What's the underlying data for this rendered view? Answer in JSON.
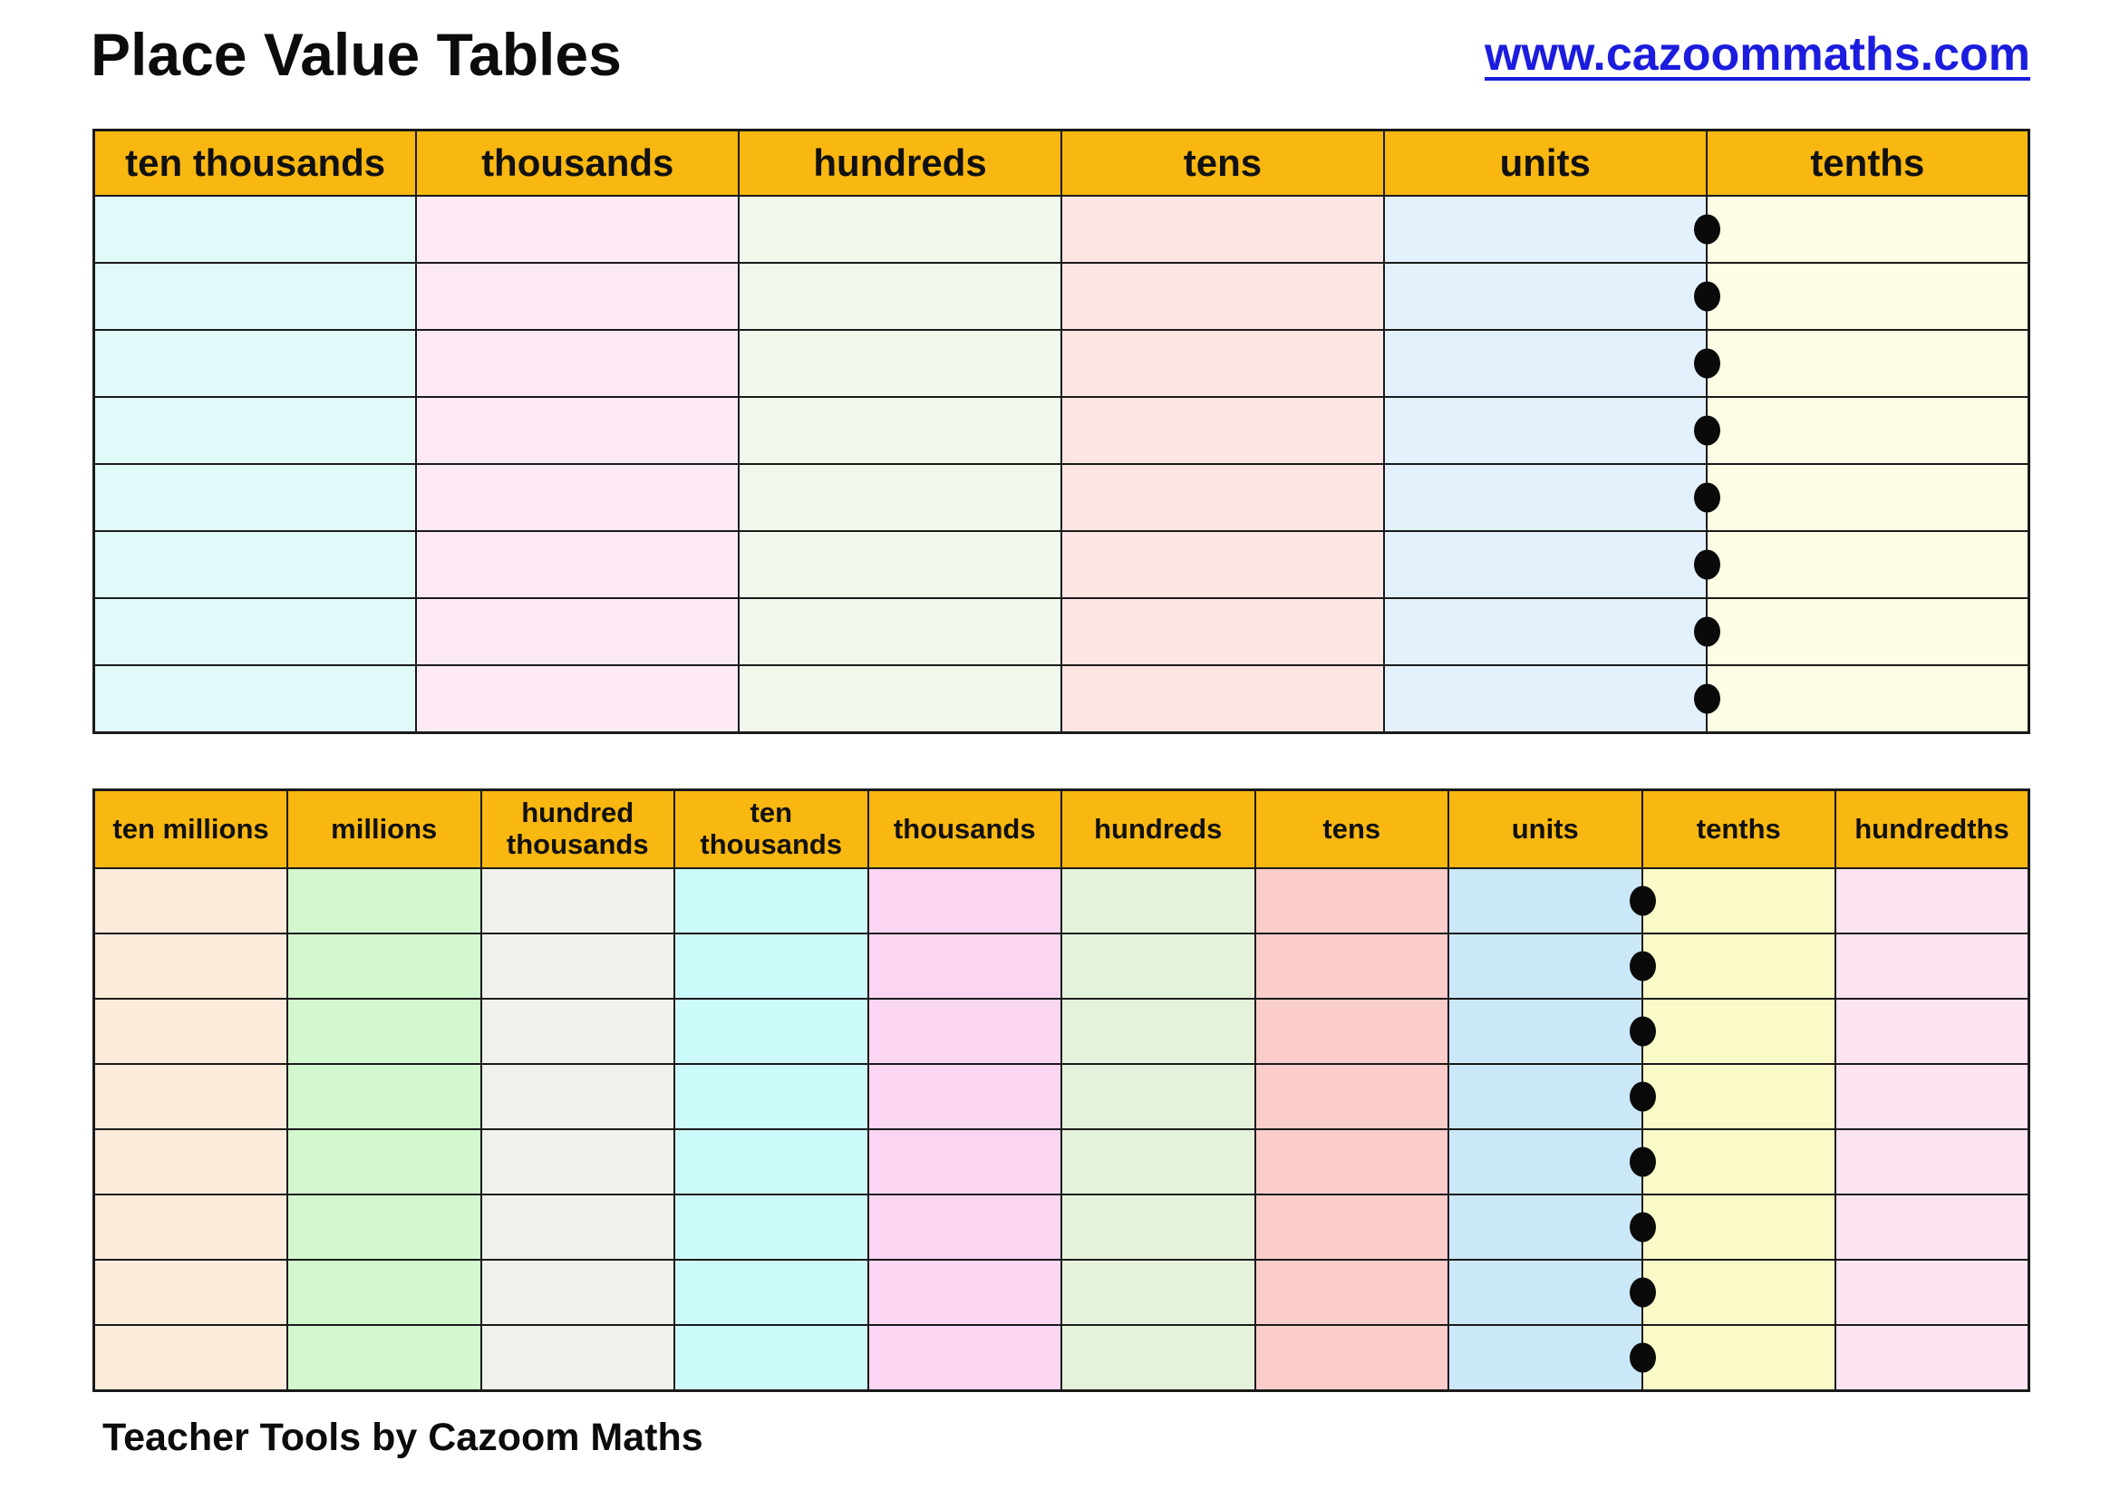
{
  "page": {
    "title": "Place Value Tables",
    "link": "www.cazoommaths.com",
    "footer": "Teacher Tools by Cazoom Maths"
  },
  "colors": {
    "header_bg": "#F8B711",
    "border": "#1A1A1A",
    "link_blue": "#1C1CDE",
    "decimal_dot": "#0A0A0A"
  },
  "icons": {
    "decimal_point": "filled-circle straddling units/tenths border"
  },
  "tables": [
    {
      "name": "place-value-table-thousands-to-tenths",
      "rows": 8,
      "decimal_point_after": "units",
      "columns": [
        {
          "label": "ten thousands",
          "color": "#E0F9F9"
        },
        {
          "label": "thousands",
          "color": "#FDE9F6"
        },
        {
          "label": "hundreds",
          "color": "#F0F8EC"
        },
        {
          "label": "tens",
          "color": "#FCE5E3"
        },
        {
          "label": "units",
          "color": "#E2F1FC",
          "decimal_point": true
        },
        {
          "label": "tenths",
          "color": "#FDFCE4"
        }
      ]
    },
    {
      "name": "place-value-table-millions-to-hundredths",
      "rows": 8,
      "decimal_point_after": "units",
      "columns": [
        {
          "label": "ten millions",
          "color": "#FCEBDB"
        },
        {
          "label": "millions",
          "color": "#D3F7CF"
        },
        {
          "label": "hundred thousands",
          "color": "#F0F0ED"
        },
        {
          "label": "ten thousands",
          "color": "#CCFAFA"
        },
        {
          "label": "thousands",
          "color": "#FBD6F2"
        },
        {
          "label": "hundreds",
          "color": "#E5F2DB"
        },
        {
          "label": "tens",
          "color": "#FBCDCA"
        },
        {
          "label": "units",
          "color": "#CBE8F9",
          "decimal_point": true
        },
        {
          "label": "tenths",
          "color": "#FAFAC9"
        },
        {
          "label": "hundredths",
          "color": "#FBE3F2"
        }
      ]
    }
  ]
}
